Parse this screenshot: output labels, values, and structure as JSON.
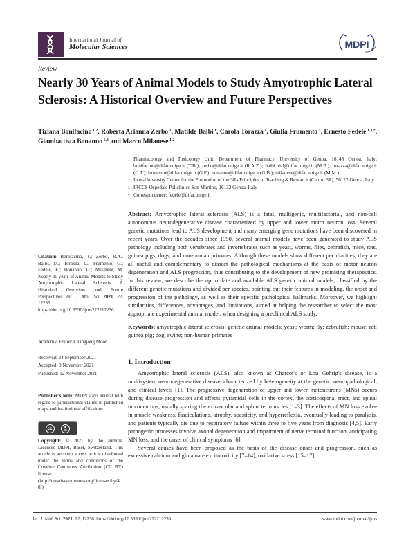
{
  "colors": {
    "logo_purple": "#4e2a50",
    "mdpi_navy": "#333f6b",
    "text": "#1c1c1c"
  },
  "header": {
    "journal_line1": "International Journal of",
    "journal_line2": "Molecular Sciences",
    "mdpi_wordmark": "MDPI"
  },
  "article": {
    "type_label": "Review",
    "title": "Nearly 30 Years of Animal Models to Study Amyotrophic Lateral Sclerosis: A Historical Overview and Future Perspectives",
    "authors": [
      {
        "name": "Tiziana Bonifacino",
        "sup": "1,2",
        "sep": ", "
      },
      {
        "name": "Roberta Arianna Zerbo",
        "sup": "1",
        "sep": ", "
      },
      {
        "name": "Matilde Balbi",
        "sup": "1",
        "sep": ", "
      },
      {
        "name": "Carola Torazza",
        "sup": "1",
        "sep": ", "
      },
      {
        "name": "Giulia Frumento",
        "sup": "1",
        "sep": ", "
      },
      {
        "name": "Ernesto Fedele",
        "sup": "1,3,*",
        "sep": ", "
      },
      {
        "name": "Giambattista Bonanno",
        "sup": "1,3",
        "sep": " and "
      },
      {
        "name": "Marco Milanese",
        "sup": "1,2",
        "sep": ""
      }
    ],
    "affiliations": [
      {
        "marker": "1",
        "text": "Pharmacology and Toxicology Unit, Department of Pharmacy, University of Genoa, 16148 Genoa, Italy; bonifacino@difar.unige.it (T.B.); zerbo@difar.unige.it (R.A.Z.); balbi.phd@difar.unige.it (M.B.); torazza@difar.unige.it (C.T.); frumento@difar.unige.it (G.F.); bonanno@difar.unige.it (G.B.); milanese@difar.unige.it (M.M.)"
      },
      {
        "marker": "2",
        "text": "Inter-University Center for the Promotion of the 3Rs Principles in Teaching & Research (Centro 3R), 56122 Genoa, Italy"
      },
      {
        "marker": "3",
        "text": "IRCCS Ospedale Policlinico San Martino, 16132 Genoa, Italy"
      },
      {
        "marker": "*",
        "text": "Correspondence: fedele@difar.unige.it"
      }
    ],
    "abstract_label": "Abstract:",
    "abstract": "Amyotrophic lateral sclerosis (ALS) is a fatal, multigenic, multifactorial, and non-cell autonomous neurodegenerative disease characterized by upper and lower motor neuron loss. Several genetic mutations lead to ALS development and many emerging gene mutations have been discovered in recent years. Over the decades since 1990, several animal models have been generated to study ALS pathology including both vertebrates and invertebrates such as yeast, worms, flies, zebrafish, mice, rats, guinea pigs, dogs, and non-human primates. Although these models show different peculiarities, they are all useful and complementary to dissect the pathological mechanisms at the basis of motor neuron degeneration and ALS progression, thus contributing to the development of new promising therapeutics. In this review, we describe the up to date and available ALS genetic animal models, classified by the different genetic mutations and divided per species, pointing out their features in modeling, the onset and progression of the pathology, as well as their specific pathological hallmarks. Moreover, we highlight similarities, differences, advantages, and limitations, aimed at helping the researcher to select the most appropriate experimental animal model, when designing a preclinical ALS study.",
    "keywords_label": "Keywords:",
    "keywords": "amyotrophic lateral sclerosis; genetic animal models; yeast; worm; fly; zebrafish; mouse; rat; guinea pig; dog; swine; non-human primates"
  },
  "sidebar": {
    "citation": {
      "label": "Citation:",
      "text": "Bonifacino, T.; Zerbo, R.A.; Balbi, M.; Torazza, C.; Frumento, G.; Fedele, E.; Bonanno, G.; Milanese, M. Nearly 30 years of Animal Models to Study Amyotrophic Lateral Sclerosis: A Historical Overview and Future Perspectives.",
      "journal": "Int. J. Mol. Sci.",
      "year": "2021",
      "sep": ", ",
      "volume": "22",
      "tail": ", 12236. https://doi.org/10.3390/ijms222212236"
    },
    "academic_editor": "Academic Editor: Changjong Moon",
    "dates": [
      "Received: 24 September 2021",
      "Accepted: 9 November 2021",
      "Published: 12 November 2021"
    ],
    "publisher_note_label": "Publisher's Note:",
    "publisher_note": "MDPI stays neutral with regard to jurisdictional claims in published maps and institutional affiliations.",
    "cc_label": "cc",
    "copyright_label": "Copyright:",
    "copyright": "© 2021 by the authors. Licensee MDPI, Basel, Switzerland. This article is an open access article distributed under the terms and conditions of the Creative Commons Attribution (CC BY) license (http://creativecommons.org/licenses/by/4.0/)."
  },
  "main": {
    "section1_heading": "1. Introduction",
    "paragraphs": [
      "Amyotrophic lateral sclerosis (ALS), also known as Charcot's or Lou Gehrig's disease, is a multisystem neurodegenerative disease, characterized by heterogeneity at the genetic, neuropathological, and clinical levels [1]. The progressive degeneration of upper and lower motoneurons (MNs) occurs during disease progression and affects pyramidal cells in the cortex, the corticospinal tract, and spinal motoneurons, usually sparing the extraocular and sphincter muscles [1–3]. The effects of MN loss evolve in muscle weakness, fasciculations, atrophy, spasticity, and hyperreflexia, eventually leading to paralysis, and patients typically die due to respiratory failure within three to five years from diagnosis [4,5]. Early pathogenic processes involve axonal degeneration and impairment of nerve terminal function, anticipating MN loss, and the onset of clinical symptoms [6].",
      "Several causes have been proposed as the basis of the disease onset and progression, such as excessive calcium and glutamate excitotoxicity [7–14], oxidative stress [15–17],"
    ]
  },
  "footer": {
    "journal": "Int. J. Mol. Sci.",
    "year": "2021",
    "sep": ", ",
    "volume": "22",
    "tail": ", 12236. https://doi.org/10.3390/ijms222212236",
    "right": "www.mdpi.com/journal/ijms"
  }
}
